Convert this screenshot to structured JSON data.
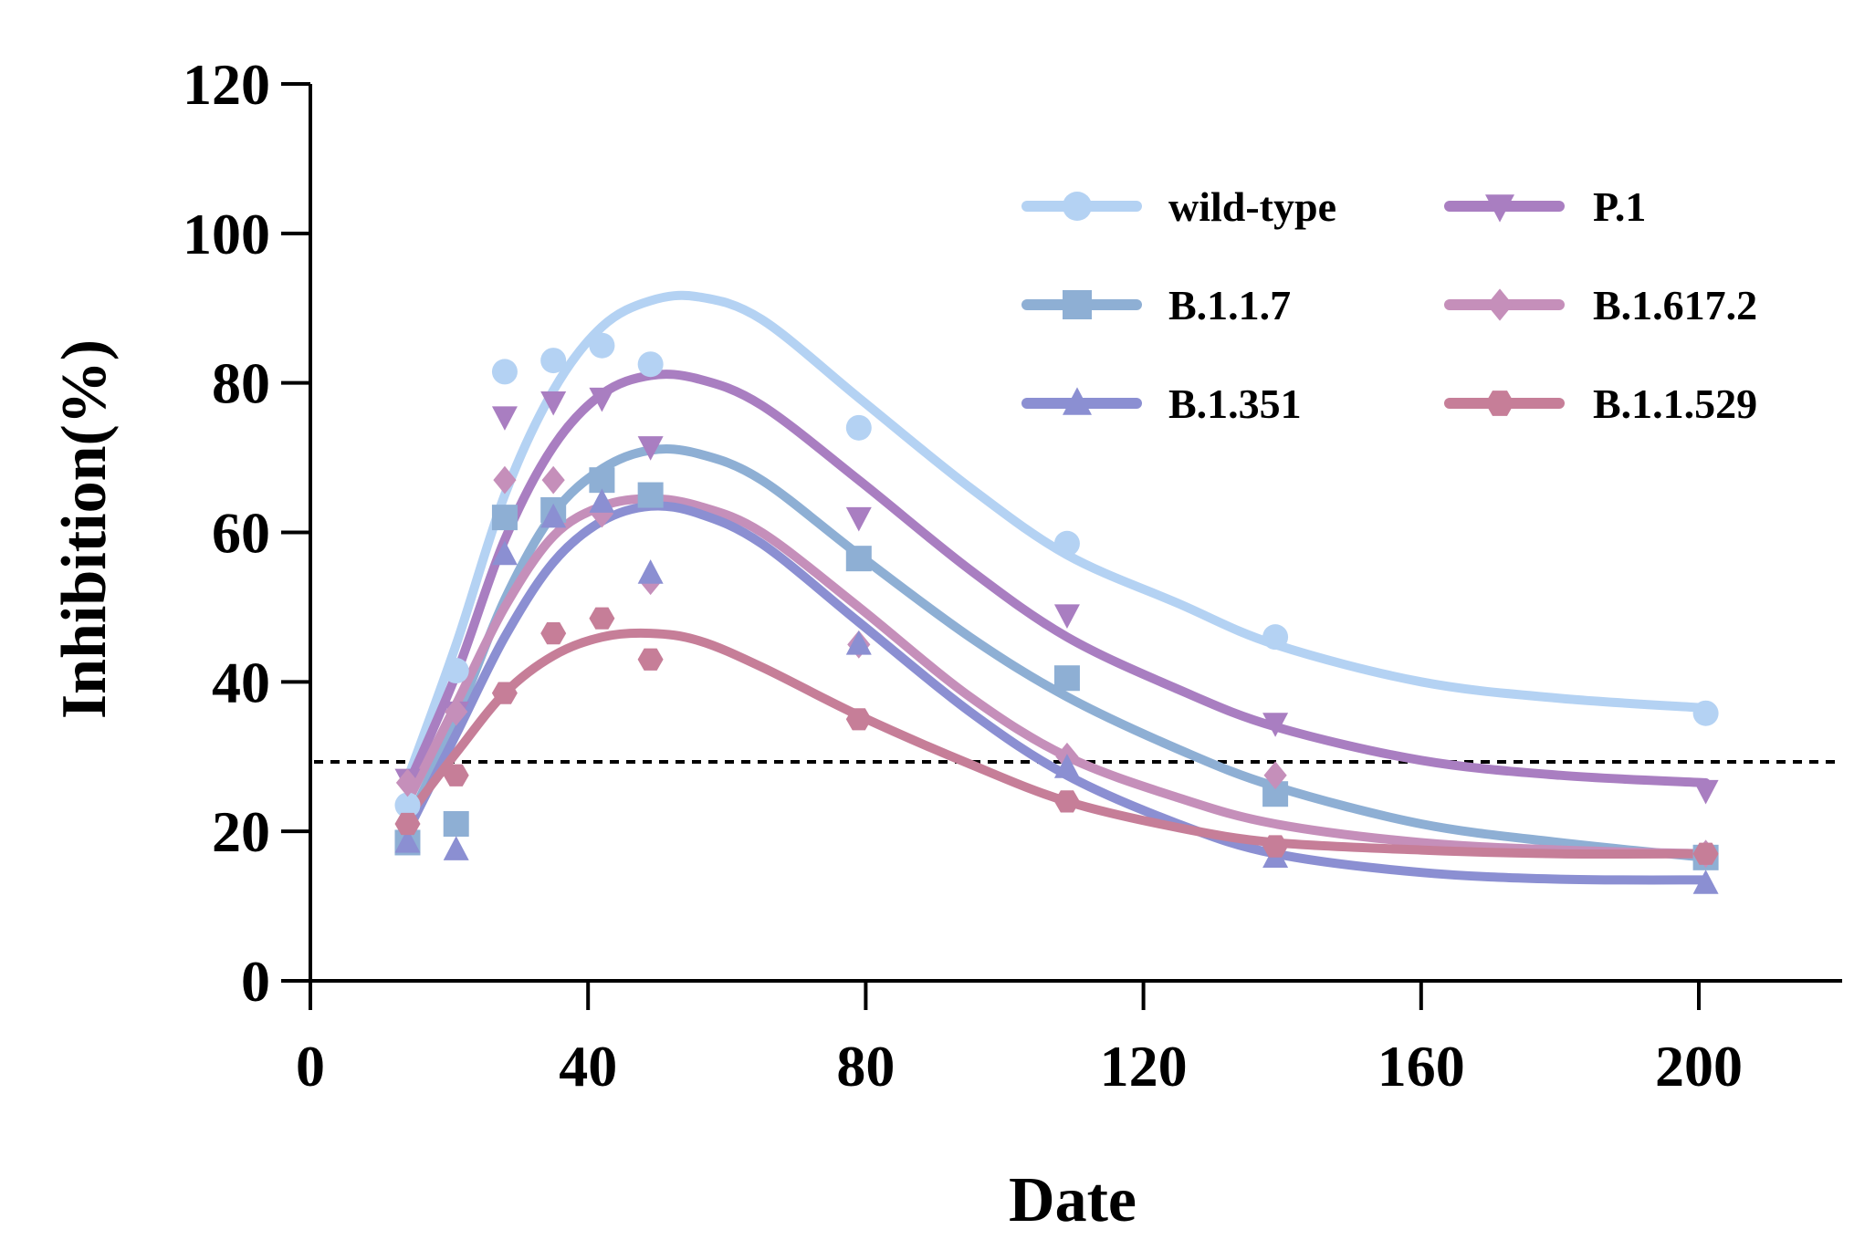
{
  "chart_data": {
    "type": "scatter",
    "title": "",
    "xlabel": "Date",
    "ylabel": "Inhibition(%)",
    "xlim": [
      0,
      220
    ],
    "ylim": [
      0,
      120
    ],
    "xticks": [
      0,
      40,
      80,
      120,
      160,
      200
    ],
    "yticks": [
      0,
      20,
      40,
      60,
      80,
      100,
      120
    ],
    "grid": false,
    "legend_position": "top-right",
    "threshold": 29.3,
    "series": [
      {
        "name": "wild-type",
        "color": "#b4d2f3",
        "marker": "circle",
        "x": [
          14,
          21,
          28,
          35,
          42,
          49,
          79,
          109,
          139,
          201
        ],
        "y": [
          23.5,
          41.5,
          81.5,
          83,
          85,
          82.5,
          74,
          58.5,
          46,
          35.8
        ],
        "curve_x": [
          14,
          21,
          28,
          35,
          42,
          49,
          56,
          65,
          79,
          95,
          109,
          125,
          139,
          160,
          180,
          201
        ],
        "curve_y": [
          27,
          45,
          65,
          79,
          87.5,
          91,
          91.5,
          88.5,
          78,
          66,
          57,
          50.5,
          45,
          40,
          37.8,
          36.5
        ]
      },
      {
        "name": "P.1",
        "color": "#a97ec1",
        "marker": "triangle-down",
        "x": [
          14,
          21,
          28,
          35,
          42,
          49,
          79,
          109,
          139,
          201
        ],
        "y": [
          27,
          36,
          75.5,
          77.5,
          78,
          71.5,
          62,
          49,
          34.5,
          25.5
        ],
        "curve_x": [
          14,
          21,
          28,
          35,
          42,
          49,
          56,
          65,
          79,
          95,
          109,
          125,
          139,
          160,
          180,
          201
        ],
        "curve_y": [
          26,
          41,
          59,
          71.5,
          78.5,
          81,
          80.5,
          77,
          67,
          55,
          46,
          39,
          34,
          29.5,
          27.5,
          26.5
        ]
      },
      {
        "name": "B.1.1.7",
        "color": "#8eafd4",
        "marker": "square",
        "x": [
          14,
          21,
          28,
          35,
          42,
          49,
          79,
          109,
          139,
          201
        ],
        "y": [
          18.5,
          21,
          62,
          63,
          67,
          65,
          56.5,
          40.5,
          25,
          16.5
        ],
        "curve_x": [
          14,
          21,
          28,
          35,
          42,
          49,
          56,
          65,
          79,
          95,
          109,
          125,
          139,
          160,
          180,
          201
        ],
        "curve_y": [
          21,
          35,
          51,
          62.5,
          68.5,
          71,
          70.5,
          67,
          57,
          46,
          38,
          31,
          26,
          21,
          18.5,
          16.5
        ]
      },
      {
        "name": "B.1.617.2",
        "color": "#c58fba",
        "marker": "diamond",
        "x": [
          14,
          21,
          28,
          35,
          42,
          49,
          79,
          109,
          139,
          201
        ],
        "y": [
          26.5,
          36,
          67,
          67,
          62.5,
          53.5,
          45,
          30,
          27.5,
          17
        ],
        "curve_x": [
          14,
          21,
          28,
          35,
          42,
          49,
          56,
          65,
          79,
          95,
          109,
          125,
          139,
          160,
          180,
          201
        ],
        "curve_y": [
          24,
          37,
          50,
          59.5,
          63.5,
          64.5,
          63.5,
          60,
          50,
          38,
          30,
          24.5,
          21,
          18.5,
          17.5,
          17
        ]
      },
      {
        "name": "B.1.351",
        "color": "#8b8fd2",
        "marker": "triangle-up",
        "x": [
          14,
          21,
          28,
          35,
          42,
          49,
          79,
          109,
          139,
          201
        ],
        "y": [
          18.5,
          17.5,
          57,
          62,
          64,
          54.5,
          45,
          28.5,
          16.5,
          13
        ],
        "curve_x": [
          14,
          21,
          28,
          35,
          42,
          49,
          56,
          65,
          79,
          95,
          109,
          125,
          139,
          160,
          180,
          201
        ],
        "curve_y": [
          20,
          33,
          46,
          56,
          61.5,
          63.5,
          62.5,
          58.5,
          48,
          36,
          27.5,
          21,
          17,
          14.5,
          13.6,
          13.5
        ]
      },
      {
        "name": "B.1.1.529",
        "color": "#c67e98",
        "marker": "hexagon",
        "x": [
          14,
          21,
          28,
          35,
          42,
          49,
          79,
          109,
          139,
          201
        ],
        "y": [
          21,
          27.5,
          38.5,
          46.5,
          48.5,
          43,
          35,
          24,
          18,
          17
        ],
        "curve_x": [
          14,
          21,
          28,
          35,
          42,
          49,
          56,
          65,
          79,
          95,
          109,
          125,
          139,
          160,
          180,
          201
        ],
        "curve_y": [
          22,
          30.5,
          38.5,
          43.5,
          46,
          46.5,
          45.5,
          42,
          35.5,
          29,
          24,
          20.5,
          18.5,
          17.5,
          17,
          17
        ]
      }
    ]
  }
}
